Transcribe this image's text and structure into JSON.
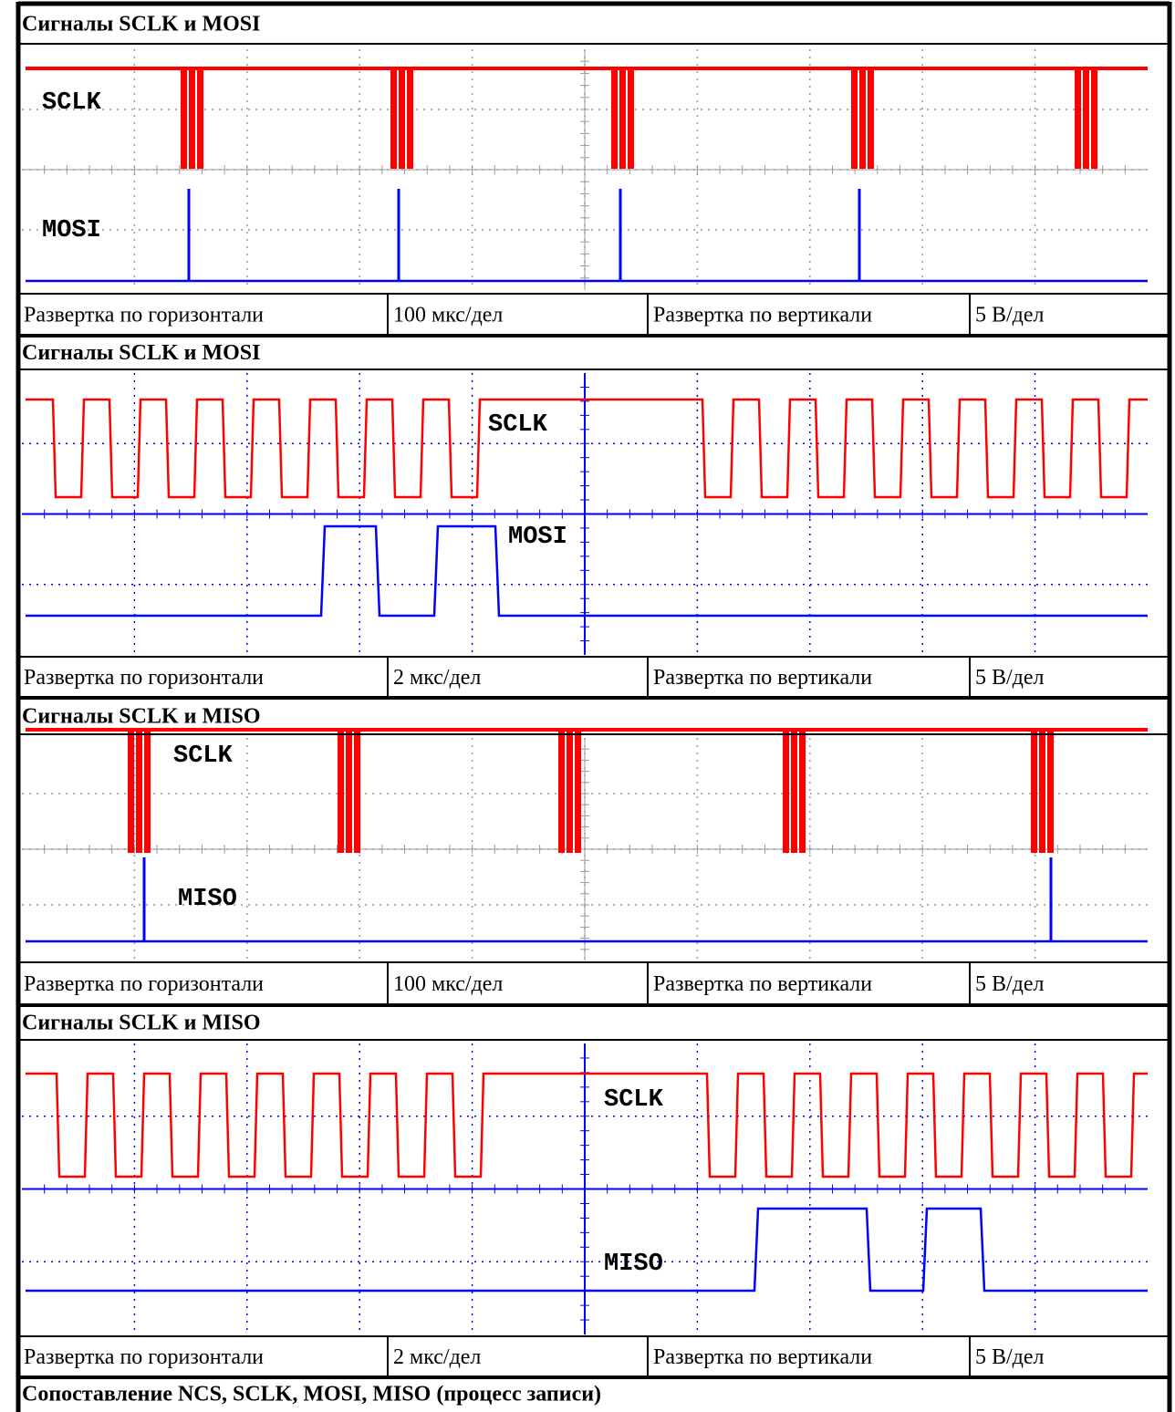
{
  "sections": [
    {
      "title": "Сигналы SCLK и MOSI",
      "signals": [
        "SCLK",
        "MOSI"
      ],
      "scale": [
        "Развертка по горизонтали",
        "100 мкс/дел",
        "Развертка по вертикали",
        "5 В/дел"
      ]
    },
    {
      "title": "Сигналы SCLK и MOSI",
      "signals": [
        "SCLK",
        "MOSI"
      ],
      "scale": [
        "Развертка по горизонтали",
        "2 мкс/дел",
        "Развертка по вертикали",
        "5 В/дел"
      ]
    },
    {
      "title": "Сигналы SCLK и MISO",
      "signals": [
        "SCLK",
        "MISO"
      ],
      "scale": [
        "Развертка по горизонтали",
        "100 мкс/дел",
        "Развертка по вертикали",
        "5 В/дел"
      ]
    },
    {
      "title": "Сигналы SCLK и MISO",
      "signals": [
        "SCLK",
        "MISO"
      ],
      "scale": [
        "Развертка по горизонтали",
        "2 мкс/дел",
        "Развертка по вертикали",
        "5 В/дел"
      ]
    }
  ],
  "caption": "Сопоставление NCS, SCLK, MOSI, MISO (процесс записи)"
}
